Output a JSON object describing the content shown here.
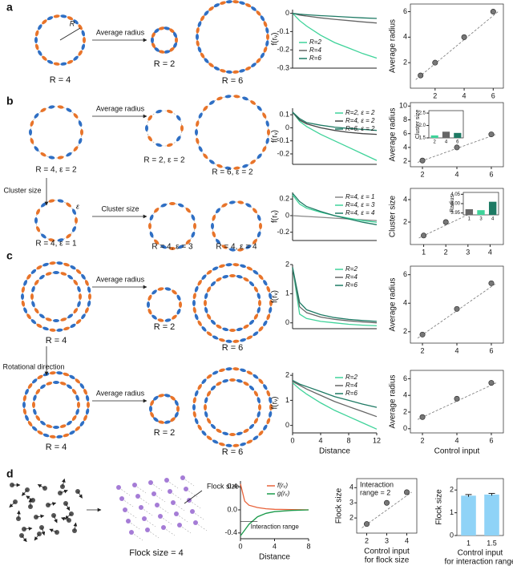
{
  "panel_labels": [
    "a",
    "b",
    "c",
    "d"
  ],
  "diagrams": {
    "a": {
      "labels": [
        "R = 4",
        "R = 2",
        "R = 6"
      ],
      "arrow": "Average radius",
      "radius_symbol": "R"
    },
    "b": {
      "labels": [
        "R = 4, ε = 2",
        "R = 2, ε = 2",
        "R = 6, ε = 2",
        "R = 4, ε = 1",
        "R = 4, ε = 3",
        "R = 4, ε = 4"
      ],
      "arrows": [
        "Average radius",
        "Cluster size",
        "Cluster size"
      ],
      "epsilon_symbol": "ε"
    },
    "c": {
      "labels": [
        "R = 4",
        "R = 2",
        "R = 6",
        "R = 4",
        "R = 2",
        "R = 6"
      ],
      "arrows": [
        "Average radius",
        "Rotational direction",
        "Average radius"
      ]
    },
    "d": {
      "labels": [
        "Flock size = 4",
        "Flock size"
      ]
    }
  },
  "chart_data": [
    {
      "type": "line",
      "ylabel": "f(rᵥ)",
      "x": [
        0,
        1,
        2,
        4,
        6,
        8,
        10,
        12
      ],
      "xlim": [
        0,
        12
      ],
      "ylim": [
        -0.3,
        0.02
      ],
      "yticks": [
        0,
        -0.1,
        -0.2,
        -0.3
      ],
      "legend": "lower left",
      "series": [
        {
          "name": "R=2",
          "color": "#3fd39a",
          "values": [
            0,
            -0.04,
            -0.07,
            -0.12,
            -0.16,
            -0.19,
            -0.22,
            -0.245
          ]
        },
        {
          "name": "R=4",
          "color": "#666666",
          "values": [
            0,
            -0.01,
            -0.015,
            -0.025,
            -0.033,
            -0.04,
            -0.047,
            -0.053
          ]
        },
        {
          "name": "R=6",
          "color": "#1e7a64",
          "values": [
            0,
            -0.005,
            -0.008,
            -0.013,
            -0.017,
            -0.021,
            -0.025,
            -0.028
          ]
        }
      ]
    },
    {
      "type": "scatter",
      "ylabel": "Average radius",
      "x": [
        1,
        2,
        4,
        6
      ],
      "values": [
        1,
        2,
        4,
        6
      ],
      "xlim": [
        0.3,
        6.7
      ],
      "ylim": [
        0,
        6.6
      ],
      "xticks": [
        2,
        4,
        6
      ],
      "yticks": [
        2,
        4,
        6
      ]
    },
    {
      "type": "line",
      "ylabel": "f(rᵥ)",
      "x": [
        0,
        1,
        2,
        4,
        6,
        8,
        10,
        12
      ],
      "xlim": [
        0,
        12
      ],
      "ylim": [
        -0.28,
        0.15
      ],
      "yticks": [
        0.1,
        0,
        -0.1,
        -0.2
      ],
      "legend": "upper right",
      "series": [
        {
          "name": "R=2, ε = 2",
          "color": "#3fd39a",
          "values": [
            0.12,
            0.05,
            0.01,
            -0.05,
            -0.1,
            -0.15,
            -0.2,
            -0.25
          ]
        },
        {
          "name": "R=4, ε = 2",
          "color": "#444444",
          "values": [
            0.12,
            0.06,
            0.03,
            0,
            -0.02,
            -0.035,
            -0.045,
            -0.05
          ]
        },
        {
          "name": "R=6, ε = 2",
          "color": "#1e7a64",
          "values": [
            0.12,
            0.07,
            0.04,
            0.02,
            0.005,
            -0.005,
            -0.012,
            -0.02
          ]
        }
      ]
    },
    {
      "type": "scatter",
      "ylabel": "Average radius",
      "x": [
        2,
        4,
        6
      ],
      "values": [
        2.1,
        4,
        5.9
      ],
      "xlim": [
        1.3,
        6.7
      ],
      "ylim": [
        1.2,
        10.5
      ],
      "xticks": [
        2,
        4,
        6
      ],
      "yticks": [
        2,
        4,
        6,
        8,
        10
      ]
    },
    {
      "type": "bar",
      "ylabel": "Cluster size",
      "categories": [
        "2",
        "4",
        "6"
      ],
      "values": [
        1.6,
        1.75,
        1.7
      ],
      "colors": [
        "#3fd39a",
        "#666666",
        "#1e7a64"
      ],
      "ylim": [
        1.5,
        2.6
      ],
      "yticks": [
        1.5,
        {
          "value": 2,
          "label": "2.0"
        },
        2.5
      ]
    },
    {
      "type": "line",
      "ylabel": "f(rᵥ)",
      "x": [
        0,
        1,
        2,
        4,
        6,
        8,
        10,
        12
      ],
      "xlim": [
        0,
        12
      ],
      "ylim": [
        -0.3,
        0.28
      ],
      "yticks": [
        0.2,
        0,
        -0.2
      ],
      "legend": "upper right",
      "series": [
        {
          "name": "R=4, ε = 1",
          "color": "#888888",
          "values": [
            0,
            -0.005,
            -0.01,
            -0.02,
            -0.03,
            -0.04,
            -0.05,
            -0.06
          ]
        },
        {
          "name": "R=4, ε = 3",
          "color": "#3fd39a",
          "values": [
            0.25,
            0.14,
            0.09,
            0.04,
            0,
            -0.03,
            -0.06,
            -0.08
          ]
        },
        {
          "name": "R=4, ε = 4",
          "color": "#1e7a64",
          "values": [
            0.27,
            0.17,
            0.11,
            0.05,
            0,
            -0.04,
            -0.08,
            -0.11
          ]
        }
      ]
    },
    {
      "type": "scatter",
      "ylabel": "Cluster size",
      "x": [
        1,
        2,
        3,
        4
      ],
      "values": [
        0.8,
        2,
        3.1,
        3.8
      ],
      "xlim": [
        0.4,
        4.6
      ],
      "ylim": [
        0,
        5
      ],
      "xticks": [
        1,
        2,
        3,
        4
      ],
      "yticks": [
        2,
        4
      ]
    },
    {
      "type": "bar",
      "ylabel": "Radius",
      "categories": [
        "1",
        "3",
        "4"
      ],
      "values": [
        3.97,
        3.965,
        4.01
      ],
      "colors": [
        "#666666",
        "#3fd39a",
        "#1e7a64"
      ],
      "ylim": [
        3.94,
        4.06
      ],
      "yticks": [
        3.95,
        {
          "value": 4,
          "label": "4.00"
        },
        4.05
      ]
    },
    {
      "type": "line",
      "ylabel": "f(rᵥ)",
      "x": [
        0,
        1,
        2,
        4,
        6,
        8,
        10,
        12
      ],
      "xlim": [
        0,
        12
      ],
      "ylim": [
        -0.2,
        2
      ],
      "yticks": [
        0,
        1,
        2
      ],
      "legend": "upper right",
      "series": [
        {
          "name": "R=2",
          "color": "#3fd39a",
          "values": [
            1.9,
            0.3,
            0.15,
            0.05,
            0,
            -0.05,
            -0.08,
            -0.1
          ]
        },
        {
          "name": "R=4",
          "color": "#666666",
          "values": [
            1.9,
            0.55,
            0.35,
            0.2,
            0.12,
            0.07,
            0.03,
            0
          ]
        },
        {
          "name": "R=6",
          "color": "#1e7a64",
          "values": [
            1.9,
            0.7,
            0.45,
            0.28,
            0.18,
            0.12,
            0.08,
            0.05
          ]
        }
      ]
    },
    {
      "type": "scatter",
      "ylabel": "Average radius",
      "x": [
        2,
        4,
        6
      ],
      "values": [
        1.8,
        3.6,
        5.4
      ],
      "xlim": [
        1.3,
        6.7
      ],
      "ylim": [
        1.2,
        6.6
      ],
      "xticks": [
        2,
        4,
        6
      ],
      "yticks": [
        2,
        4,
        6
      ]
    },
    {
      "type": "line",
      "ylabel": "f(rᵥ)",
      "xlabel": "Distance",
      "x": [
        0,
        1,
        2,
        4,
        6,
        8,
        10,
        12
      ],
      "xlim": [
        0,
        12
      ],
      "ylim": [
        -0.3,
        2.1
      ],
      "xticks": [
        0,
        4,
        8,
        12
      ],
      "yticks": [
        0,
        1,
        2
      ],
      "legend": "upper right",
      "series": [
        {
          "name": "R=2",
          "color": "#3fd39a",
          "values": [
            1.7,
            1.45,
            1.25,
            0.9,
            0.6,
            0.35,
            0.1,
            -0.15
          ]
        },
        {
          "name": "R=4",
          "color": "#666666",
          "values": [
            1.75,
            1.6,
            1.45,
            1.2,
            0.95,
            0.75,
            0.55,
            0.35
          ]
        },
        {
          "name": "R=6",
          "color": "#1e7a64",
          "values": [
            1.8,
            1.65,
            1.55,
            1.35,
            1.15,
            1,
            0.85,
            0.72
          ]
        }
      ]
    },
    {
      "type": "scatter",
      "ylabel": "Average radius",
      "xlabel": "Control input",
      "x": [
        2,
        4,
        6
      ],
      "values": [
        1.4,
        3.6,
        5.5
      ],
      "xlim": [
        1.3,
        6.7
      ],
      "ylim": [
        -0.5,
        7
      ],
      "xticks": [
        2,
        4,
        6
      ],
      "yticks": [
        0,
        2,
        4,
        6
      ]
    },
    {
      "type": "line",
      "xlabel": "Distance",
      "annotation": "Interaction range",
      "x": [
        0,
        0.5,
        1,
        2,
        3,
        4,
        6,
        8
      ],
      "xlim": [
        0,
        8
      ],
      "ylim": [
        -0.5,
        0.5
      ],
      "xticks": [
        0,
        4,
        8
      ],
      "yticks": [
        0.4,
        {
          "value": 0,
          "label": "0.0"
        },
        -0.4
      ],
      "legend": "upper right",
      "series": [
        {
          "name": "f(rᵥ)",
          "color": "#e8623a",
          "values": [
            0.45,
            0.15,
            0.08,
            0.04,
            0.02,
            0.01,
            0.005,
            0
          ]
        },
        {
          "name": "g(rᵥ)",
          "color": "#1a9a4a",
          "values": [
            -0.45,
            -0.35,
            -0.25,
            -0.12,
            -0.06,
            -0.03,
            -0.01,
            0
          ]
        }
      ]
    },
    {
      "type": "scatter",
      "ylabel": "Flock size",
      "xlabel": [
        "Control input",
        "for flock size"
      ],
      "annotation": [
        "Interaction",
        "range = 2"
      ],
      "x": [
        2,
        3,
        4
      ],
      "values": [
        1.6,
        3,
        3.7
      ],
      "xlim": [
        1.5,
        4.5
      ],
      "ylim": [
        1,
        4.6
      ],
      "xticks": [
        2,
        3,
        4
      ],
      "yticks": [
        2,
        3,
        4
      ]
    },
    {
      "type": "bar",
      "ylabel": "Flock size",
      "xlabel": [
        "Control input",
        "for interaction range"
      ],
      "categories": [
        "1",
        "1.5"
      ],
      "values": [
        1.75,
        1.8
      ],
      "errors": [
        0.05,
        0.05
      ],
      "color": "#8fd3f7",
      "ylim": [
        0,
        2.5
      ],
      "yticks": [
        0,
        1,
        2
      ]
    }
  ]
}
